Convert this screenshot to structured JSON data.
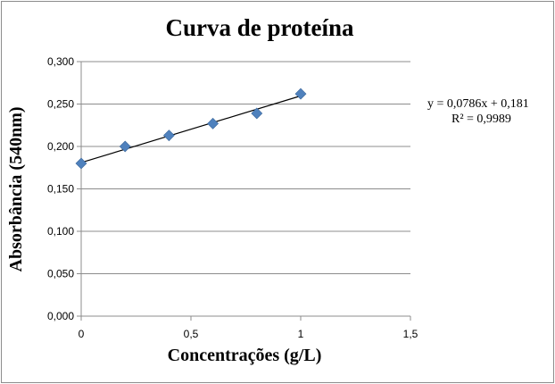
{
  "chart_data": {
    "type": "scatter",
    "title": "Curva de proteína",
    "xlabel": "Concentrações (g/L)",
    "ylabel": "Absorbância (540nm)",
    "xlim": [
      0,
      1.5
    ],
    "ylim": [
      0,
      0.3
    ],
    "x_ticks": [
      "0",
      "0,5",
      "1",
      "1,5"
    ],
    "x_tick_values": [
      0,
      0.5,
      1,
      1.5
    ],
    "y_ticks": [
      "0,000",
      "0,050",
      "0,100",
      "0,150",
      "0,200",
      "0,250",
      "0,300"
    ],
    "y_tick_values": [
      0,
      0.05,
      0.1,
      0.15,
      0.2,
      0.25,
      0.3
    ],
    "grid": "horizontal",
    "legend": "none",
    "series": [
      {
        "x": [
          0,
          0.2,
          0.4,
          0.6,
          0.8,
          1.0
        ],
        "y": [
          0.18,
          0.2,
          0.213,
          0.227,
          0.239,
          0.262
        ],
        "color": "#4f81bd"
      }
    ],
    "trendline": {
      "type": "linear",
      "slope": 0.0786,
      "intercept": 0.181,
      "x_range": [
        0,
        1.0
      ],
      "color": "#000000"
    },
    "annotations": [
      "y = 0,0786x   + 0,181",
      "R² = 0,9989"
    ]
  }
}
